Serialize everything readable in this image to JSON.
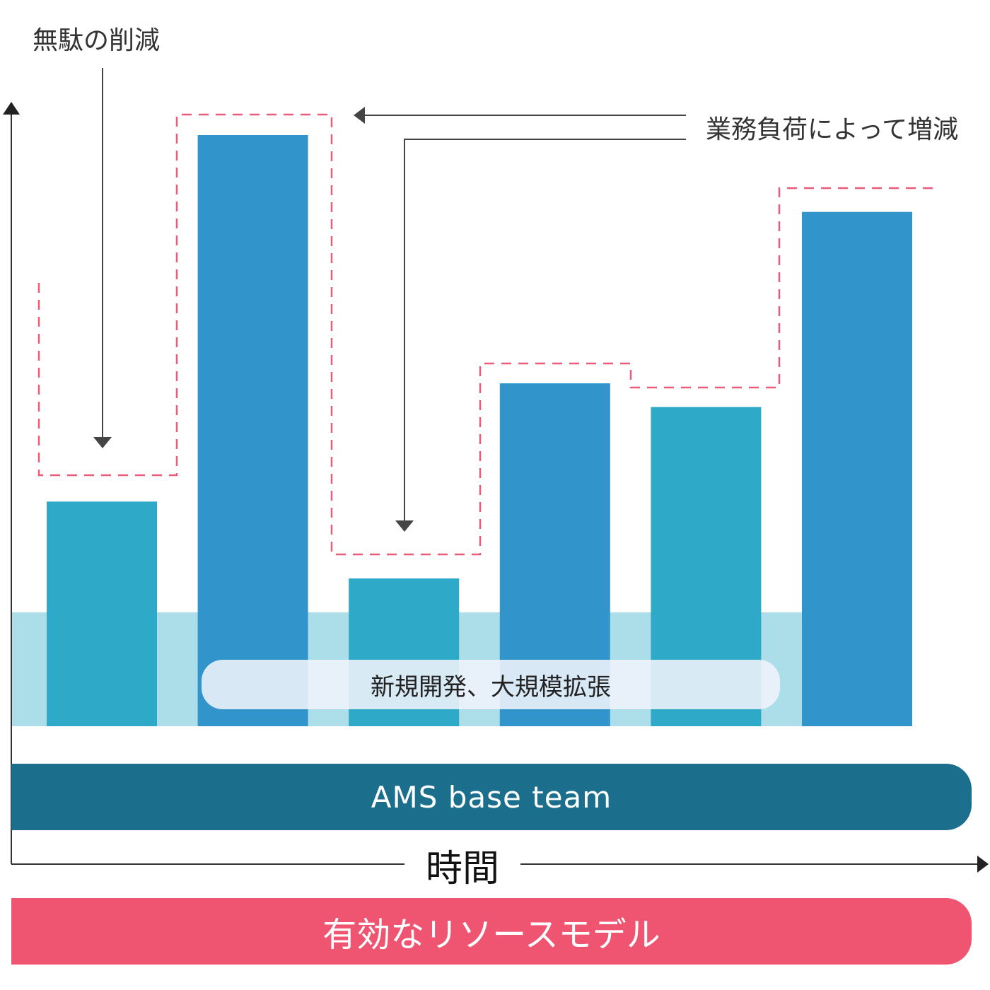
{
  "labels": {
    "waste_reduction": "無駄の削減",
    "varies_with_workload": "業務負荷によって増減",
    "new_dev_expansion": "新規開発、大規模拡張",
    "ams_base_team": "AMS base team",
    "time_axis": "時間",
    "effective_model": "有効なリソースモデル"
  },
  "colors": {
    "bar_teal": "#2eaac8",
    "bar_blue": "#3194cb",
    "band_light": "#acdee9",
    "ams_bar": "#1b6f8c",
    "effective_bar": "#ef5470",
    "dash_outline": "#ee5a79",
    "arrow": "#444444"
  },
  "chart_data": {
    "type": "bar",
    "categories": [
      "",
      "",
      "",
      "",
      "",
      ""
    ],
    "values": [
      38,
      100,
      25,
      58,
      54,
      87
    ],
    "bar_colors": [
      "#2eaac8",
      "#3194cb",
      "#2eaac8",
      "#3194cb",
      "#2eaac8",
      "#3194cb"
    ],
    "base_band_level": 19,
    "capacity_outline": [
      43,
      103,
      29,
      61,
      57,
      90
    ],
    "ylim": [
      0,
      100
    ],
    "grid": false,
    "xlabel": "時間",
    "ylabel": ""
  }
}
